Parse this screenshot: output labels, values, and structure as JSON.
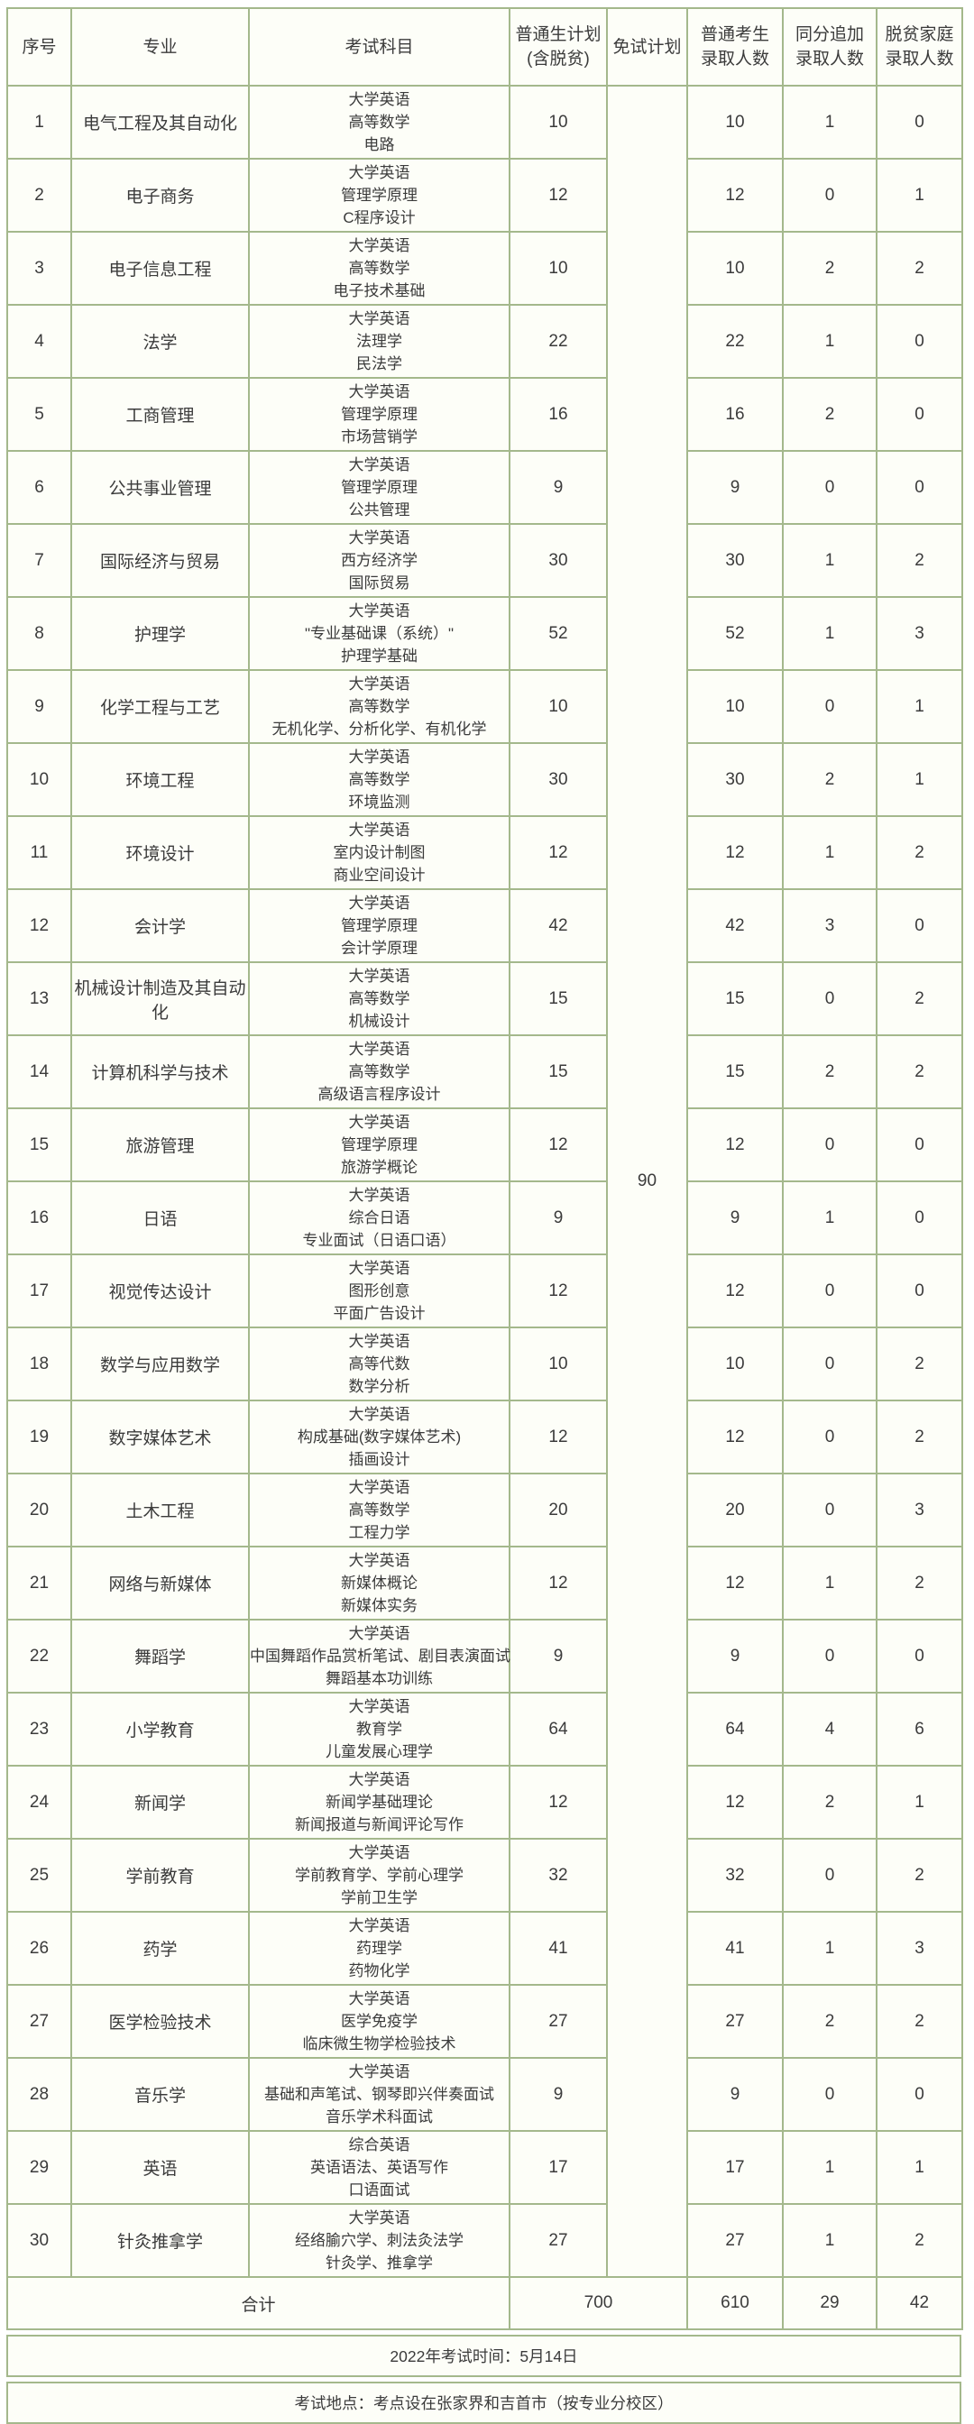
{
  "colors": {
    "border": "#a4b88c",
    "cell_background": "#fdfef8",
    "text": "#3b3b3b"
  },
  "table": {
    "columns": [
      {
        "line1": "序号",
        "line2": ""
      },
      {
        "line1": "专业",
        "line2": ""
      },
      {
        "line1": "考试科目",
        "line2": ""
      },
      {
        "line1": "普通生计划",
        "line2": "(含脱贫)"
      },
      {
        "line1": "免试计划",
        "line2": ""
      },
      {
        "line1": "普通考生",
        "line2": "录取人数"
      },
      {
        "line1": "同分追加",
        "line2": "录取人数"
      },
      {
        "line1": "脱贫家庭",
        "line2": "录取人数"
      }
    ],
    "exempt_plan_total": "90",
    "rows": [
      {
        "no": "1",
        "major": "电气工程及其自动化",
        "subjects": [
          "大学英语",
          "高等数学",
          "电路"
        ],
        "plan": "10",
        "admitted": "10",
        "tie_extra": "1",
        "poverty": "0"
      },
      {
        "no": "2",
        "major": "电子商务",
        "subjects": [
          "大学英语",
          "管理学原理",
          "C程序设计"
        ],
        "plan": "12",
        "admitted": "12",
        "tie_extra": "0",
        "poverty": "1"
      },
      {
        "no": "3",
        "major": "电子信息工程",
        "subjects": [
          "大学英语",
          "高等数学",
          "电子技术基础"
        ],
        "plan": "10",
        "admitted": "10",
        "tie_extra": "2",
        "poverty": "2"
      },
      {
        "no": "4",
        "major": "法学",
        "subjects": [
          "大学英语",
          "法理学",
          "民法学"
        ],
        "plan": "22",
        "admitted": "22",
        "tie_extra": "1",
        "poverty": "0"
      },
      {
        "no": "5",
        "major": "工商管理",
        "subjects": [
          "大学英语",
          "管理学原理",
          "市场营销学"
        ],
        "plan": "16",
        "admitted": "16",
        "tie_extra": "2",
        "poverty": "0"
      },
      {
        "no": "6",
        "major": "公共事业管理",
        "subjects": [
          "大学英语",
          "管理学原理",
          "公共管理"
        ],
        "plan": "9",
        "admitted": "9",
        "tie_extra": "0",
        "poverty": "0"
      },
      {
        "no": "7",
        "major": "国际经济与贸易",
        "subjects": [
          "大学英语",
          "西方经济学",
          "国际贸易"
        ],
        "plan": "30",
        "admitted": "30",
        "tie_extra": "1",
        "poverty": "2"
      },
      {
        "no": "8",
        "major": "护理学",
        "subjects": [
          "大学英语",
          "\"专业基础课（系统）\"",
          "护理学基础"
        ],
        "plan": "52",
        "admitted": "52",
        "tie_extra": "1",
        "poverty": "3"
      },
      {
        "no": "9",
        "major": "化学工程与工艺",
        "subjects": [
          "大学英语",
          "高等数学",
          "无机化学、分析化学、有机化学"
        ],
        "plan": "10",
        "admitted": "10",
        "tie_extra": "0",
        "poverty": "1"
      },
      {
        "no": "10",
        "major": "环境工程",
        "subjects": [
          "大学英语",
          "高等数学",
          "环境监测"
        ],
        "plan": "30",
        "admitted": "30",
        "tie_extra": "2",
        "poverty": "1"
      },
      {
        "no": "11",
        "major": "环境设计",
        "subjects": [
          "大学英语",
          "室内设计制图",
          "商业空间设计"
        ],
        "plan": "12",
        "admitted": "12",
        "tie_extra": "1",
        "poverty": "2"
      },
      {
        "no": "12",
        "major": "会计学",
        "subjects": [
          "大学英语",
          "管理学原理",
          "会计学原理"
        ],
        "plan": "42",
        "admitted": "42",
        "tie_extra": "3",
        "poverty": "0"
      },
      {
        "no": "13",
        "major": "机械设计制造及其自动化",
        "subjects": [
          "大学英语",
          "高等数学",
          "机械设计"
        ],
        "plan": "15",
        "admitted": "15",
        "tie_extra": "0",
        "poverty": "2"
      },
      {
        "no": "14",
        "major": "计算机科学与技术",
        "subjects": [
          "大学英语",
          "高等数学",
          "高级语言程序设计"
        ],
        "plan": "15",
        "admitted": "15",
        "tie_extra": "2",
        "poverty": "2"
      },
      {
        "no": "15",
        "major": "旅游管理",
        "subjects": [
          "大学英语",
          "管理学原理",
          "旅游学概论"
        ],
        "plan": "12",
        "admitted": "12",
        "tie_extra": "0",
        "poverty": "0"
      },
      {
        "no": "16",
        "major": "日语",
        "subjects": [
          "大学英语",
          "综合日语",
          "专业面试（日语口语）"
        ],
        "plan": "9",
        "admitted": "9",
        "tie_extra": "1",
        "poverty": "0"
      },
      {
        "no": "17",
        "major": "视觉传达设计",
        "subjects": [
          "大学英语",
          "图形创意",
          "平面广告设计"
        ],
        "plan": "12",
        "admitted": "12",
        "tie_extra": "0",
        "poverty": "0"
      },
      {
        "no": "18",
        "major": "数学与应用数学",
        "subjects": [
          "大学英语",
          "高等代数",
          "数学分析"
        ],
        "plan": "10",
        "admitted": "10",
        "tie_extra": "0",
        "poverty": "2"
      },
      {
        "no": "19",
        "major": "数字媒体艺术",
        "subjects": [
          "大学英语",
          "构成基础(数字媒体艺术)",
          "插画设计"
        ],
        "plan": "12",
        "admitted": "12",
        "tie_extra": "0",
        "poverty": "2"
      },
      {
        "no": "20",
        "major": "土木工程",
        "subjects": [
          "大学英语",
          "高等数学",
          "工程力学"
        ],
        "plan": "20",
        "admitted": "20",
        "tie_extra": "0",
        "poverty": "3"
      },
      {
        "no": "21",
        "major": "网络与新媒体",
        "subjects": [
          "大学英语",
          "新媒体概论",
          "新媒体实务"
        ],
        "plan": "12",
        "admitted": "12",
        "tie_extra": "1",
        "poverty": "2"
      },
      {
        "no": "22",
        "major": "舞蹈学",
        "subjects": [
          "大学英语",
          "中国舞蹈作品赏析笔试、剧目表演面试",
          "舞蹈基本功训练"
        ],
        "plan": "9",
        "admitted": "9",
        "tie_extra": "0",
        "poverty": "0"
      },
      {
        "no": "23",
        "major": "小学教育",
        "subjects": [
          "大学英语",
          "教育学",
          "儿童发展心理学"
        ],
        "plan": "64",
        "admitted": "64",
        "tie_extra": "4",
        "poverty": "6"
      },
      {
        "no": "24",
        "major": "新闻学",
        "subjects": [
          "大学英语",
          "新闻学基础理论",
          "新闻报道与新闻评论写作"
        ],
        "plan": "12",
        "admitted": "12",
        "tie_extra": "2",
        "poverty": "1"
      },
      {
        "no": "25",
        "major": "学前教育",
        "subjects": [
          "大学英语",
          "学前教育学、学前心理学",
          "学前卫生学"
        ],
        "plan": "32",
        "admitted": "32",
        "tie_extra": "0",
        "poverty": "2"
      },
      {
        "no": "26",
        "major": "药学",
        "subjects": [
          "大学英语",
          "药理学",
          "药物化学"
        ],
        "plan": "41",
        "admitted": "41",
        "tie_extra": "1",
        "poverty": "3"
      },
      {
        "no": "27",
        "major": "医学检验技术",
        "subjects": [
          "大学英语",
          "医学免疫学",
          "临床微生物学检验技术"
        ],
        "plan": "27",
        "admitted": "27",
        "tie_extra": "2",
        "poverty": "2"
      },
      {
        "no": "28",
        "major": "音乐学",
        "subjects": [
          "大学英语",
          "基础和声笔试、钢琴即兴伴奏面试",
          "音乐学术科面试"
        ],
        "plan": "9",
        "admitted": "9",
        "tie_extra": "0",
        "poverty": "0"
      },
      {
        "no": "29",
        "major": "英语",
        "subjects": [
          "综合英语",
          "英语语法、英语写作",
          "口语面试"
        ],
        "plan": "17",
        "admitted": "17",
        "tie_extra": "1",
        "poverty": "1"
      },
      {
        "no": "30",
        "major": "针灸推拿学",
        "subjects": [
          "大学英语",
          "经络腧穴学、刺法灸法学",
          "针灸学、推拿学"
        ],
        "plan": "27",
        "admitted": "27",
        "tie_extra": "1",
        "poverty": "2"
      }
    ],
    "summary": {
      "label": "合计",
      "plan_total": "700",
      "admitted_total": "610",
      "tie_extra_total": "29",
      "poverty_total": "42"
    },
    "notes": {
      "exam_time": "2022年考试时间：5月14日",
      "exam_location": "考试地点：考点设在张家界和吉首市（按专业分校区）"
    }
  }
}
